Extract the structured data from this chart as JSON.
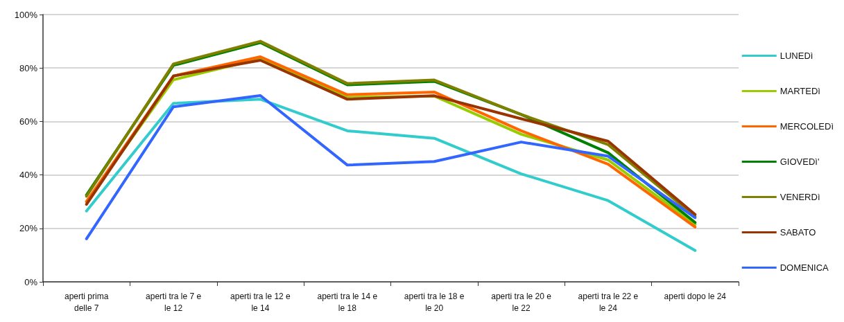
{
  "chart_data": {
    "type": "line",
    "categories": [
      "aperti prima delle 7",
      "aperti tra le 7 e le 12",
      "aperti tra le 12 e le 14",
      "aperti tra le 14 e le 18",
      "aperti tra le 18 e le 20",
      "aperti tra le 20 e le 22",
      "aperti tra le 22 e le 24",
      "aperti dopo le 24"
    ],
    "series": [
      {
        "name": "LUNEDì",
        "color": "#33cccc",
        "values": [
          26.5,
          66.8,
          68.3,
          56.5,
          53.7,
          40.4,
          30.4,
          11.7
        ]
      },
      {
        "name": "MARTEDì",
        "color": "#99cc00",
        "values": [
          30,
          75.6,
          83.5,
          69,
          69.5,
          55.2,
          45.6,
          21.5
        ]
      },
      {
        "name": "MERCOLEDì",
        "color": "#ff6600",
        "values": [
          30,
          77,
          84.2,
          70,
          71,
          56.5,
          44,
          20.5
        ]
      },
      {
        "name": "GIOVEDì'",
        "color": "#008000",
        "values": [
          32.5,
          81,
          89.5,
          73.7,
          75,
          62.6,
          48.3,
          22.2
        ]
      },
      {
        "name": "VENERDì",
        "color": "#808000",
        "values": [
          32,
          81.5,
          90,
          74.2,
          75.5,
          62.6,
          51.3,
          24.5
        ]
      },
      {
        "name": "SABATO",
        "color": "#993300",
        "values": [
          29,
          77,
          82.9,
          68.3,
          69.6,
          61,
          52.6,
          25.2
        ]
      },
      {
        "name": "DOMENICA",
        "color": "#3366ff",
        "values": [
          16.1,
          65.5,
          69.7,
          43.7,
          45,
          52.3,
          47,
          24
        ]
      }
    ],
    "ylim": [
      0,
      100
    ],
    "yticks": [
      {
        "value": 0,
        "label": "0%"
      },
      {
        "value": 20,
        "label": "20%"
      },
      {
        "value": 40,
        "label": "40%"
      },
      {
        "value": 60,
        "label": "60%"
      },
      {
        "value": 80,
        "label": "80%"
      },
      {
        "value": 100,
        "label": "100%"
      }
    ],
    "grid": "y",
    "legend": "right",
    "marker": "none",
    "line_style": "solid"
  }
}
